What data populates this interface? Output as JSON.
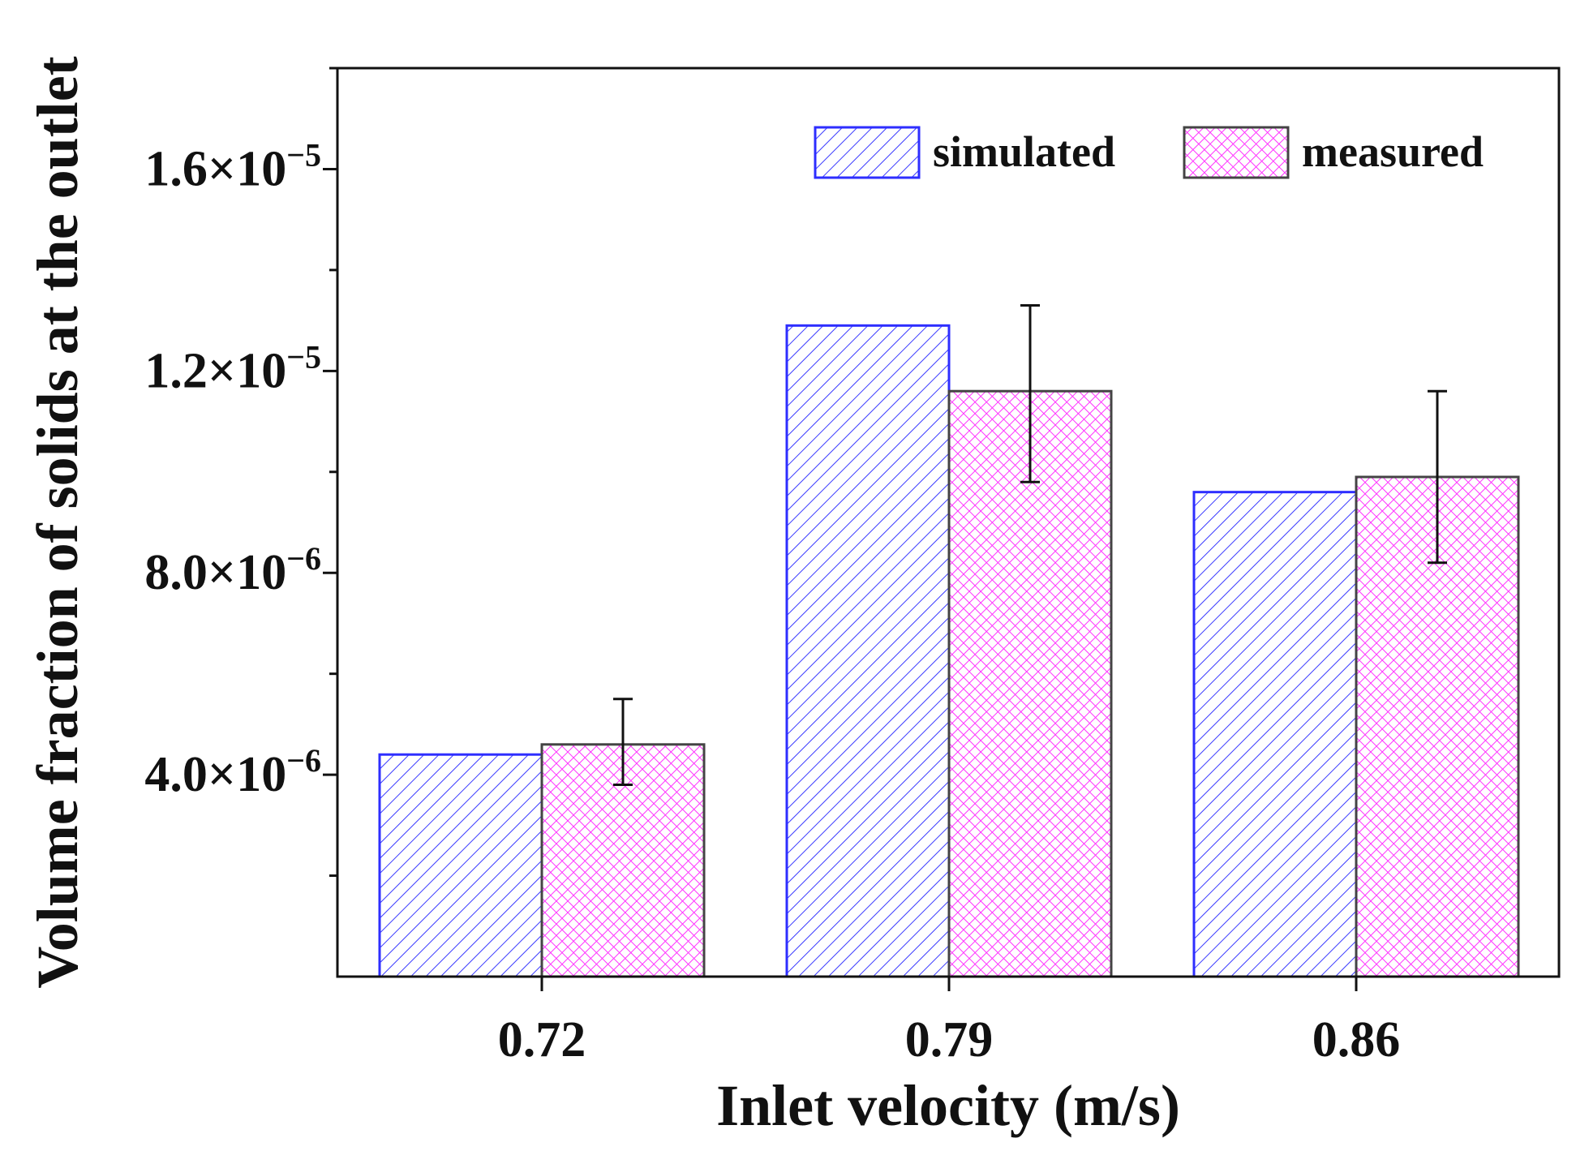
{
  "chart_data": {
    "type": "bar",
    "title": "",
    "xlabel": "Inlet velocity (m/s)",
    "ylabel": "Volume fraction of solids at the outlet",
    "categories": [
      "0.72",
      "0.79",
      "0.86"
    ],
    "ylim": [
      0,
      1.8e-05
    ],
    "yticks": [
      4e-06,
      8e-06,
      1.2e-05,
      1.6e-05
    ],
    "ytick_labels": [
      {
        "mantissa": "4.0×10",
        "exponent": "−6"
      },
      {
        "mantissa": "8.0×10",
        "exponent": "−6"
      },
      {
        "mantissa": "1.2×10",
        "exponent": "−5"
      },
      {
        "mantissa": "1.6×10",
        "exponent": "−5"
      }
    ],
    "series": [
      {
        "name": "simulated",
        "values": [
          4.4e-06,
          1.29e-05,
          9.6e-06
        ],
        "color": "#3a3aff",
        "pattern": "diagonal-hatch"
      },
      {
        "name": "measured",
        "values": [
          4.6e-06,
          1.16e-05,
          9.9e-06
        ],
        "error_low": [
          3.8e-06,
          9.8e-06,
          8.2e-06
        ],
        "error_high": [
          5.5e-06,
          1.33e-05,
          1.16e-05
        ],
        "color": "#ff33ff",
        "pattern": "crosshatch"
      }
    ],
    "legend_position": "top-right",
    "grid": false
  }
}
